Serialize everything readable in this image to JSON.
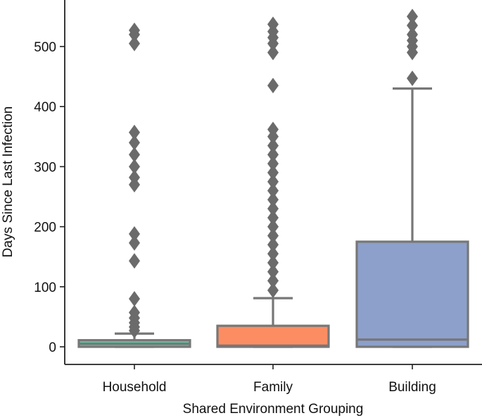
{
  "chart_data": {
    "type": "boxplot",
    "xlabel": "Shared Environment Grouping",
    "ylabel": "Days Since Last Infection",
    "ylim": [
      -30,
      570
    ],
    "yticks": [
      0,
      100,
      200,
      300,
      400,
      500
    ],
    "categories": [
      "Household",
      "Family",
      "Building"
    ],
    "colors": {
      "Household": "#66c2a5",
      "Family": "#fc8d62",
      "Building": "#8da0cb",
      "line": "#777777",
      "flier": "#6b6b6b"
    },
    "boxes": [
      {
        "category": "Household",
        "whisker_low": 0,
        "q1": 0,
        "median": 5,
        "q3": 11,
        "whisker_high": 22,
        "fliers": [
          27,
          33,
          40,
          48,
          57,
          80,
          143,
          173,
          188,
          270,
          282,
          300,
          320,
          340,
          357,
          505,
          520,
          527
        ]
      },
      {
        "category": "Family",
        "whisker_low": 0,
        "q1": 0,
        "median": 2,
        "q3": 35,
        "whisker_high": 81,
        "fliers": [
          94,
          110,
          125,
          140,
          155,
          170,
          185,
          200,
          215,
          230,
          245,
          260,
          275,
          290,
          305,
          320,
          335,
          350,
          362,
          435,
          490,
          505,
          515,
          525,
          537
        ]
      },
      {
        "category": "Building",
        "whisker_low": 0,
        "q1": 0,
        "median": 12,
        "q3": 175,
        "whisker_high": 430,
        "fliers": [
          447,
          490,
          500,
          510,
          520,
          535,
          550
        ]
      }
    ]
  }
}
